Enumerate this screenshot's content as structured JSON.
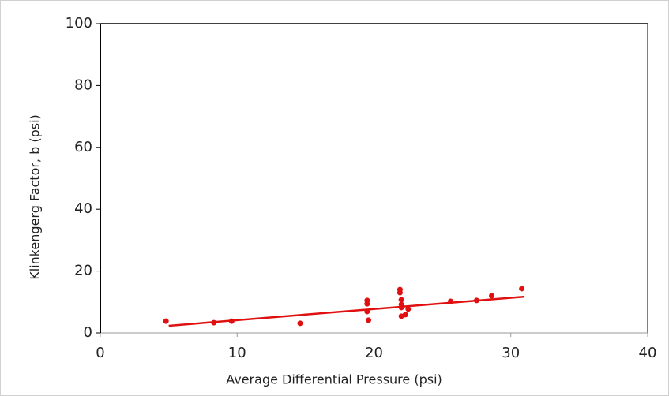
{
  "chart_data": {
    "type": "scatter",
    "x_label": "Average Differential Pressure (psi)",
    "y_label": "Klinkengerg Factor, b (psi)",
    "xlim": [
      0,
      40
    ],
    "xticks": [
      0,
      10,
      20,
      30,
      40
    ],
    "ylim": [
      0,
      100
    ],
    "yticks": [
      0,
      20,
      40,
      60,
      80,
      100
    ],
    "points": {
      "color": "#e01010",
      "x": [
        4.8,
        8.3,
        9.6,
        14.6,
        19.5,
        19.5,
        19.5,
        19.6,
        21.9,
        21.9,
        22.0,
        22.0,
        22.0,
        22.0,
        22.3,
        22.5,
        25.6,
        27.5,
        28.6,
        30.8
      ],
      "y": [
        3.8,
        3.3,
        3.8,
        3.1,
        10.5,
        9.4,
        6.9,
        4.1,
        14.0,
        13.0,
        10.7,
        9.2,
        8.2,
        5.4,
        5.9,
        7.7,
        10.2,
        10.5,
        12.0,
        14.3
      ]
    },
    "trendline": {
      "color": "#e01010",
      "x": [
        5,
        31
      ],
      "y": [
        2.3,
        11.7
      ]
    }
  }
}
